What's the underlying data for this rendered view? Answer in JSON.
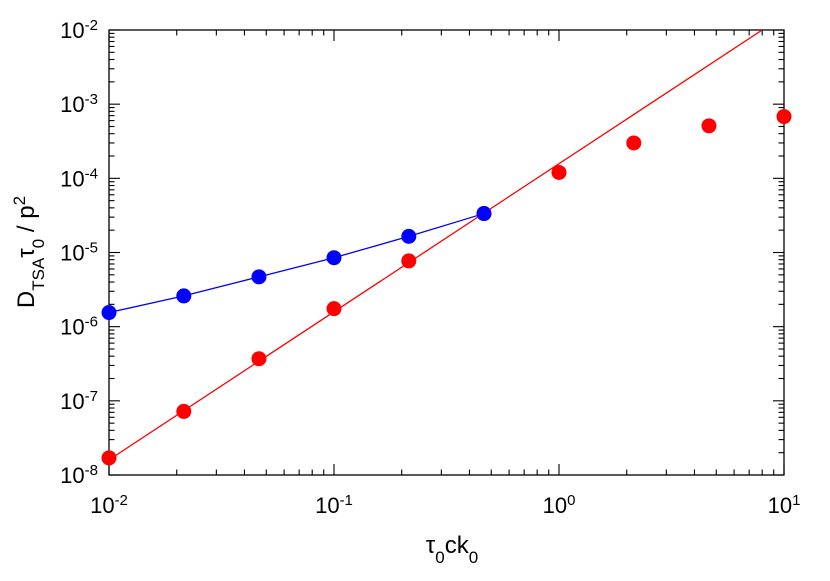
{
  "chart_data": {
    "type": "scatter",
    "xlabel": {
      "parts": [
        "τ",
        "0",
        "ck",
        "0"
      ]
    },
    "ylabel": {
      "parts": [
        "D",
        "TSA",
        "τ",
        "0",
        " / p",
        "2"
      ]
    },
    "x_scale": "log",
    "y_scale": "log",
    "xlim": [
      0.01,
      10
    ],
    "ylim": [
      1e-08,
      0.01
    ],
    "x_ticks": [
      {
        "base": "10",
        "exp": "-2",
        "value": 0.01
      },
      {
        "base": "10",
        "exp": "-1",
        "value": 0.1
      },
      {
        "base": "10",
        "exp": "0",
        "value": 1
      },
      {
        "base": "10",
        "exp": "1",
        "value": 10
      }
    ],
    "y_ticks": [
      {
        "base": "10",
        "exp": "-8",
        "value": 1e-08
      },
      {
        "base": "10",
        "exp": "-7",
        "value": 1e-07
      },
      {
        "base": "10",
        "exp": "-6",
        "value": 1e-06
      },
      {
        "base": "10",
        "exp": "-5",
        "value": 1e-05
      },
      {
        "base": "10",
        "exp": "-4",
        "value": 0.0001
      },
      {
        "base": "10",
        "exp": "-3",
        "value": 0.001
      },
      {
        "base": "10",
        "exp": "-2",
        "value": 0.01
      }
    ],
    "grid": false,
    "legend": "none",
    "series": [
      {
        "color": "#ff0000",
        "marker": "circle",
        "connected": false,
        "points": [
          [
            0.01,
            1.7e-08
          ],
          [
            0.0215,
            7.2e-08
          ],
          [
            0.0464,
            3.7e-07
          ],
          [
            0.1,
            1.75e-06
          ],
          [
            0.215,
            7.7e-06
          ],
          [
            0.464,
            3.35e-05
          ],
          [
            1.0,
            0.00012
          ],
          [
            2.15,
            0.0003
          ],
          [
            4.64,
            0.00051
          ],
          [
            10.0,
            0.00068
          ]
        ]
      },
      {
        "color": "#0000ff",
        "marker": "circle",
        "connected": true,
        "points": [
          [
            0.01,
            1.55e-06
          ],
          [
            0.0215,
            2.6e-06
          ],
          [
            0.0464,
            4.7e-06
          ],
          [
            0.1,
            8.5e-06
          ],
          [
            0.215,
            1.65e-05
          ],
          [
            0.464,
            3.35e-05
          ]
        ]
      }
    ],
    "fit_line": {
      "color": "#ff0000",
      "x": [
        0.01,
        8.0
      ],
      "y": [
        1.6e-08,
        0.01
      ]
    }
  }
}
